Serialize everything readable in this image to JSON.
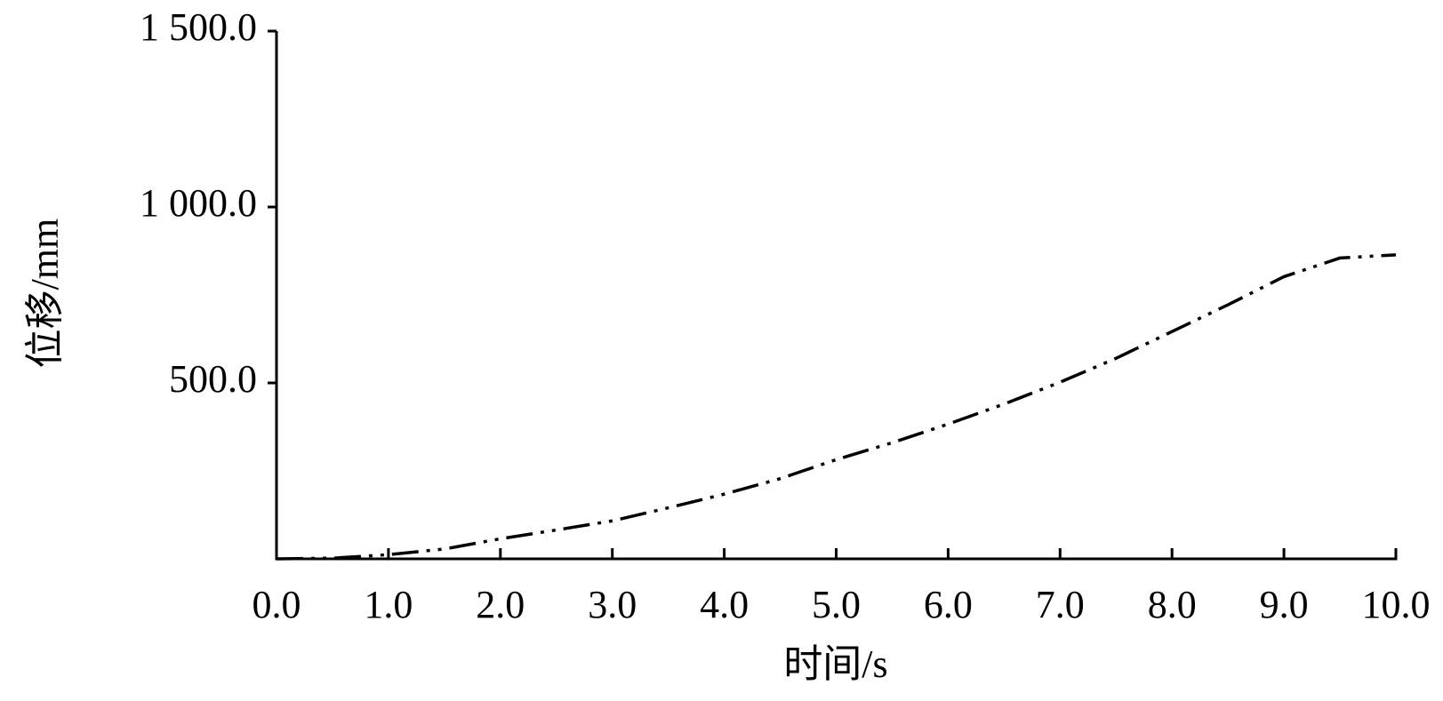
{
  "chart_data": {
    "type": "line",
    "x_label": "时间/s",
    "y_label": "位移/mm",
    "x": [
      0,
      0.5,
      1.0,
      1.5,
      2.0,
      2.5,
      3.0,
      3.5,
      4.0,
      4.5,
      5.0,
      5.5,
      6.0,
      6.5,
      7.0,
      7.5,
      8.0,
      8.5,
      9.0,
      9.5,
      10.0
    ],
    "series": [
      {
        "color": "#000000",
        "values": [
          0,
          2,
          12,
          28,
          57,
          82,
          108,
          145,
          184,
          228,
          282,
          330,
          383,
          440,
          502,
          570,
          646,
          722,
          802,
          855,
          864
        ]
      }
    ],
    "xlim": [
      0,
      10
    ],
    "ylim": [
      0,
      1500
    ],
    "xticks": [
      {
        "value": 0,
        "label": "0.0"
      },
      {
        "value": 1,
        "label": "1.0"
      },
      {
        "value": 2,
        "label": "2.0"
      },
      {
        "value": 3,
        "label": "3.0"
      },
      {
        "value": 4,
        "label": "4.0"
      },
      {
        "value": 5,
        "label": "5.0"
      },
      {
        "value": 6,
        "label": "6.0"
      },
      {
        "value": 7,
        "label": "7.0"
      },
      {
        "value": 8,
        "label": "8.0"
      },
      {
        "value": 9,
        "label": "9.0"
      },
      {
        "value": 10,
        "label": "10.0"
      }
    ],
    "yticks": [
      {
        "value": 500,
        "label": "500.0"
      },
      {
        "value": 1000,
        "label": "1 000.0"
      },
      {
        "value": 1500,
        "label": "1 500.0"
      }
    ],
    "grid": false
  }
}
